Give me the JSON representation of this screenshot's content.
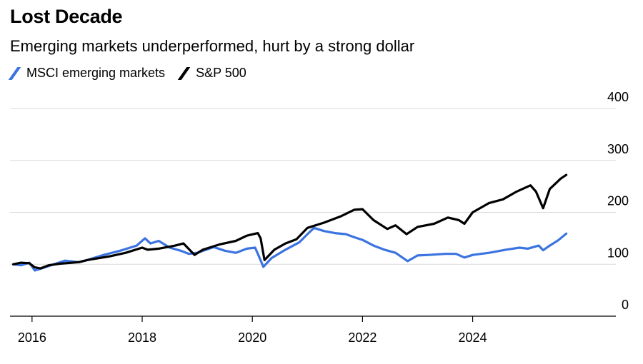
{
  "chart_data": {
    "type": "line",
    "title": "Lost Decade",
    "subtitle": "Emerging markets underperformed, hurt by a strong dollar",
    "xlabel": "",
    "ylabel": "",
    "xlim": [
      2015.6,
      2026.6
    ],
    "ylim": [
      0,
      400
    ],
    "y_ticks": [
      0,
      100,
      200,
      300,
      400
    ],
    "x_ticks": [
      2016,
      2018,
      2020,
      2022,
      2024
    ],
    "grid": true,
    "legend_position": "top-left",
    "series": [
      {
        "name": "MSCI emerging markets",
        "color": "#3b73e0",
        "points": [
          [
            2015.66,
            100
          ],
          [
            2015.8,
            98
          ],
          [
            2015.95,
            103
          ],
          [
            2016.05,
            88
          ],
          [
            2016.2,
            93
          ],
          [
            2016.4,
            100
          ],
          [
            2016.6,
            107
          ],
          [
            2016.85,
            104
          ],
          [
            2017.0,
            108
          ],
          [
            2017.3,
            118
          ],
          [
            2017.6,
            126
          ],
          [
            2017.9,
            136
          ],
          [
            2018.05,
            150
          ],
          [
            2018.15,
            140
          ],
          [
            2018.3,
            145
          ],
          [
            2018.5,
            132
          ],
          [
            2018.7,
            126
          ],
          [
            2018.85,
            120
          ],
          [
            2019.0,
            122
          ],
          [
            2019.3,
            133
          ],
          [
            2019.5,
            126
          ],
          [
            2019.7,
            122
          ],
          [
            2019.9,
            130
          ],
          [
            2020.05,
            132
          ],
          [
            2020.12,
            115
          ],
          [
            2020.2,
            95
          ],
          [
            2020.35,
            112
          ],
          [
            2020.6,
            128
          ],
          [
            2020.85,
            142
          ],
          [
            2021.0,
            158
          ],
          [
            2021.12,
            170
          ],
          [
            2021.3,
            164
          ],
          [
            2021.5,
            160
          ],
          [
            2021.7,
            158
          ],
          [
            2021.85,
            152
          ],
          [
            2022.0,
            147
          ],
          [
            2022.2,
            136
          ],
          [
            2022.4,
            128
          ],
          [
            2022.6,
            122
          ],
          [
            2022.82,
            106
          ],
          [
            2023.0,
            117
          ],
          [
            2023.2,
            118
          ],
          [
            2023.5,
            120
          ],
          [
            2023.7,
            120
          ],
          [
            2023.85,
            113
          ],
          [
            2024.0,
            118
          ],
          [
            2024.3,
            122
          ],
          [
            2024.6,
            128
          ],
          [
            2024.85,
            132
          ],
          [
            2025.0,
            130
          ],
          [
            2025.2,
            136
          ],
          [
            2025.28,
            127
          ],
          [
            2025.4,
            136
          ],
          [
            2025.55,
            146
          ],
          [
            2025.7,
            159
          ]
        ]
      },
      {
        "name": "S&P 500",
        "color": "#000000",
        "points": [
          [
            2015.66,
            100
          ],
          [
            2015.8,
            103
          ],
          [
            2015.95,
            102
          ],
          [
            2016.05,
            94
          ],
          [
            2016.15,
            92
          ],
          [
            2016.3,
            98
          ],
          [
            2016.5,
            101
          ],
          [
            2016.85,
            104
          ],
          [
            2017.0,
            108
          ],
          [
            2017.4,
            115
          ],
          [
            2017.7,
            122
          ],
          [
            2018.0,
            132
          ],
          [
            2018.1,
            128
          ],
          [
            2018.3,
            130
          ],
          [
            2018.6,
            136
          ],
          [
            2018.75,
            140
          ],
          [
            2018.95,
            118
          ],
          [
            2019.1,
            128
          ],
          [
            2019.4,
            138
          ],
          [
            2019.7,
            145
          ],
          [
            2019.9,
            155
          ],
          [
            2020.1,
            160
          ],
          [
            2020.15,
            150
          ],
          [
            2020.22,
            108
          ],
          [
            2020.4,
            128
          ],
          [
            2020.6,
            140
          ],
          [
            2020.8,
            148
          ],
          [
            2021.0,
            170
          ],
          [
            2021.3,
            180
          ],
          [
            2021.6,
            192
          ],
          [
            2021.85,
            205
          ],
          [
            2022.0,
            206
          ],
          [
            2022.2,
            185
          ],
          [
            2022.45,
            168
          ],
          [
            2022.6,
            175
          ],
          [
            2022.8,
            158
          ],
          [
            2023.0,
            172
          ],
          [
            2023.3,
            178
          ],
          [
            2023.55,
            190
          ],
          [
            2023.75,
            185
          ],
          [
            2023.85,
            178
          ],
          [
            2024.0,
            200
          ],
          [
            2024.3,
            218
          ],
          [
            2024.55,
            225
          ],
          [
            2024.8,
            240
          ],
          [
            2025.05,
            252
          ],
          [
            2025.15,
            240
          ],
          [
            2025.28,
            208
          ],
          [
            2025.4,
            245
          ],
          [
            2025.6,
            265
          ],
          [
            2025.7,
            272
          ]
        ]
      }
    ]
  }
}
